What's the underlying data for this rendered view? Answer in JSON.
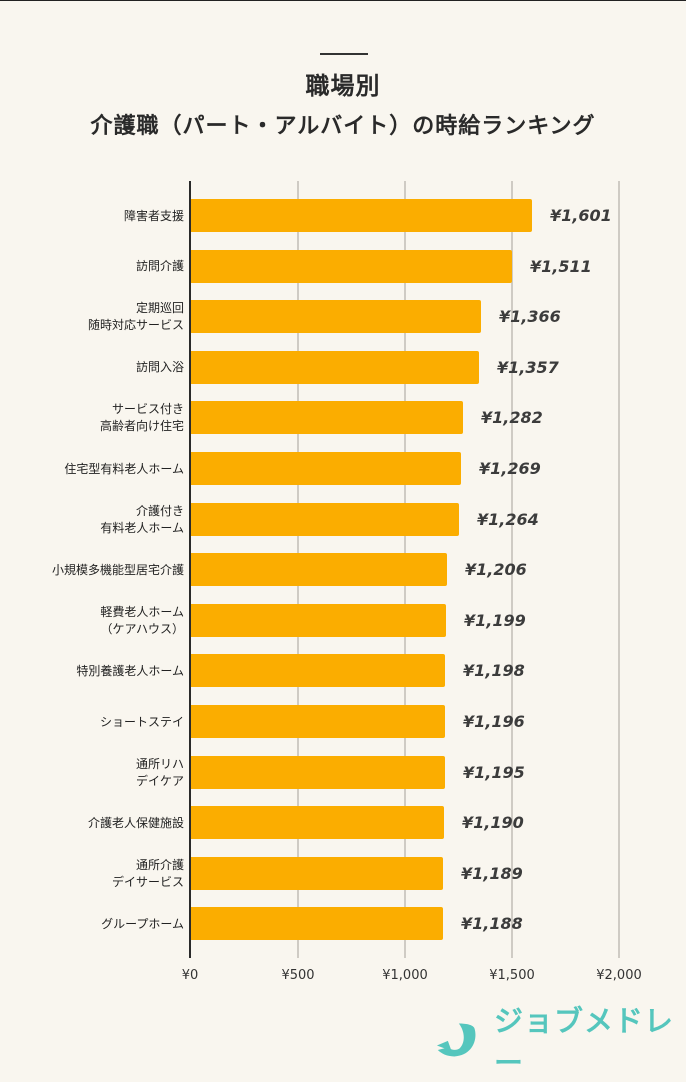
{
  "header": {
    "title": "職場別",
    "subtitle": "介護職（パート・アルバイト）の時給ランキング"
  },
  "colors": {
    "background": "#f9f6ef",
    "bar": "#fbad00",
    "gridline": "#cfcbc4",
    "axis": "#2a2a2a",
    "brand": "#55c6bd"
  },
  "axis": {
    "ticks": [
      "¥0",
      "¥500",
      "¥1,000",
      "¥1,500",
      "¥2,000"
    ]
  },
  "bars": [
    {
      "label": "障害者支援",
      "value_label": "¥1,601"
    },
    {
      "label": "訪問介護",
      "value_label": "¥1,511"
    },
    {
      "label": "定期巡回\n随時対応サービス",
      "value_label": "¥1,366"
    },
    {
      "label": "訪問入浴",
      "value_label": "¥1,357"
    },
    {
      "label": "サービス付き\n高齢者向け住宅",
      "value_label": "¥1,282"
    },
    {
      "label": "住宅型有料老人ホーム",
      "value_label": "¥1,269"
    },
    {
      "label": "介護付き\n有料老人ホーム",
      "value_label": "¥1,264"
    },
    {
      "label": "小規模多機能型居宅介護",
      "value_label": "¥1,206"
    },
    {
      "label": "軽費老人ホーム\n（ケアハウス）",
      "value_label": "¥1,199"
    },
    {
      "label": "特別養護老人ホーム",
      "value_label": "¥1,198"
    },
    {
      "label": "ショートステイ",
      "value_label": "¥1,196"
    },
    {
      "label": "通所リハ\nデイケア",
      "value_label": "¥1,195"
    },
    {
      "label": "介護老人保健施設",
      "value_label": "¥1,190"
    },
    {
      "label": "通所介護\nデイサービス",
      "value_label": "¥1,189"
    },
    {
      "label": "グループホーム",
      "value_label": "¥1,188"
    }
  ],
  "logo": {
    "text": "ジョブメドレー",
    "icon": "jobmedley-logo-icon"
  },
  "chart_data": {
    "type": "bar",
    "orientation": "horizontal",
    "title": "職場別 介護職（パート・アルバイト）の時給ランキング",
    "xlabel": "",
    "ylabel": "",
    "xlim": [
      0,
      2000
    ],
    "x_ticks": [
      0,
      500,
      1000,
      1500,
      2000
    ],
    "x_tick_labels": [
      "¥0",
      "¥500",
      "¥1,000",
      "¥1,500",
      "¥2,000"
    ],
    "grid": true,
    "legend": null,
    "categories": [
      "障害者支援",
      "訪問介護",
      "定期巡回 随時対応サービス",
      "訪問入浴",
      "サービス付き 高齢者向け住宅",
      "住宅型有料老人ホーム",
      "介護付き 有料老人ホーム",
      "小規模多機能型居宅介護",
      "軽費老人ホーム（ケアハウス）",
      "特別養護老人ホーム",
      "ショートステイ",
      "通所リハ デイケア",
      "介護老人保健施設",
      "通所介護 デイサービス",
      "グループホーム"
    ],
    "values": [
      1601,
      1511,
      1366,
      1357,
      1282,
      1269,
      1264,
      1206,
      1199,
      1198,
      1196,
      1195,
      1190,
      1189,
      1188
    ],
    "unit": "円/時"
  }
}
